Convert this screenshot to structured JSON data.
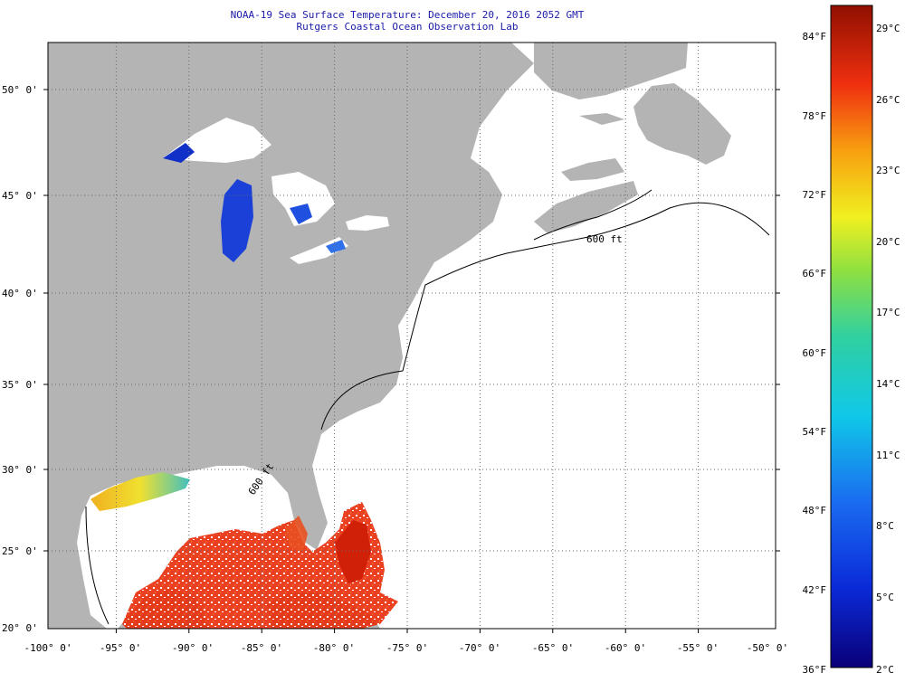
{
  "title": "NOAA-19 Sea Surface Temperature:  December 20, 2016 2052 GMT",
  "subtitle": "Rutgers Coastal Ocean Observation Lab",
  "map": {
    "lon_labels": [
      "-100° 0'",
      "-95° 0'",
      "-90° 0'",
      "-85° 0'",
      "-80° 0'",
      "-75° 0'",
      "-70° 0'",
      "-65° 0'",
      "-60° 0'",
      "-55° 0'",
      "-50° 0'"
    ],
    "lat_labels": [
      "50° 0'",
      "45° 0'",
      "40° 0'",
      "35° 0'",
      "30° 0'",
      "25° 0'",
      "20° 0'"
    ],
    "isobath_label": "600 ft",
    "colors": {
      "land": "#b4b4b4",
      "ocean_no_data": "#ffffff",
      "grid": "#888888"
    }
  },
  "colorbar": {
    "fahrenheit_labels": [
      "84°F",
      "78°F",
      "72°F",
      "66°F",
      "60°F",
      "54°F",
      "48°F",
      "42°F",
      "36°F"
    ],
    "celsius_labels": [
      "29°C",
      "26°C",
      "23°C",
      "20°C",
      "17°C",
      "14°C",
      "11°C",
      "8°C",
      "5°C",
      "2°C"
    ]
  }
}
